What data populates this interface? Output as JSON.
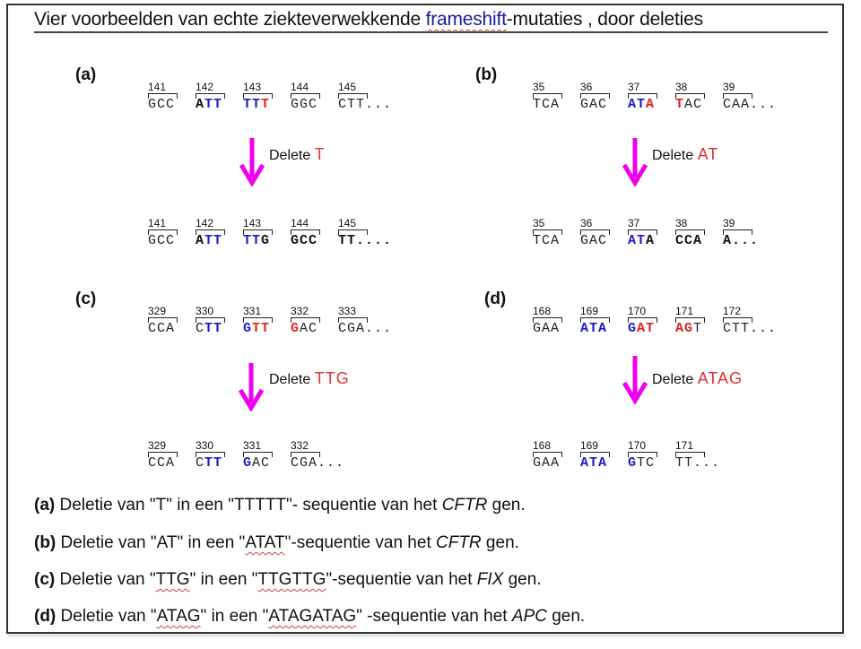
{
  "title": {
    "before": "Vier voorbeelden  van echte  ziekteverwekkende ",
    "highlight": "frameshift",
    "after": "-mutaties ,  door deleties"
  },
  "colors": {
    "arrow": "#ee00ee",
    "inserted_blue": "#1a1ac8",
    "deleted_red": "#e02020"
  },
  "panels": {
    "a": {
      "label": "(a)",
      "delete_word": "Delete",
      "deleted": "T",
      "before": [
        {
          "num": "141",
          "parts": [
            {
              "t": "GCC",
              "c": "n"
            }
          ]
        },
        {
          "num": "142",
          "parts": [
            {
              "t": "A",
              "c": "b"
            },
            {
              "t": "TT",
              "c": "blue"
            }
          ]
        },
        {
          "num": "143",
          "parts": [
            {
              "t": "TT",
              "c": "blue"
            },
            {
              "t": "T",
              "c": "red"
            }
          ]
        },
        {
          "num": "144",
          "parts": [
            {
              "t": "GGC",
              "c": "n"
            }
          ]
        },
        {
          "num": "145",
          "parts": [
            {
              "t": "CTT...",
              "c": "n"
            }
          ]
        }
      ],
      "after": [
        {
          "num": "141",
          "parts": [
            {
              "t": "GCC",
              "c": "n"
            }
          ]
        },
        {
          "num": "142",
          "parts": [
            {
              "t": "A",
              "c": "b"
            },
            {
              "t": "TT",
              "c": "blue"
            }
          ]
        },
        {
          "num": "143",
          "parts": [
            {
              "t": "TT",
              "c": "blue"
            },
            {
              "t": "G",
              "c": "b"
            }
          ]
        },
        {
          "num": "144",
          "parts": [
            {
              "t": "GCC",
              "c": "b"
            }
          ]
        },
        {
          "num": "145",
          "parts": [
            {
              "t": "TT....",
              "c": "b"
            }
          ]
        }
      ]
    },
    "b": {
      "label": "(b)",
      "delete_word": "Delete",
      "deleted": "AT",
      "before": [
        {
          "num": "35",
          "parts": [
            {
              "t": "TCA",
              "c": "n"
            }
          ]
        },
        {
          "num": "36",
          "parts": [
            {
              "t": "GAC",
              "c": "n"
            }
          ]
        },
        {
          "num": "37",
          "parts": [
            {
              "t": "AT",
              "c": "blue"
            },
            {
              "t": "A",
              "c": "red"
            }
          ]
        },
        {
          "num": "38",
          "parts": [
            {
              "t": "T",
              "c": "red"
            },
            {
              "t": "AC",
              "c": "n"
            }
          ]
        },
        {
          "num": "39",
          "parts": [
            {
              "t": "CAA...",
              "c": "n"
            }
          ]
        }
      ],
      "after": [
        {
          "num": "35",
          "parts": [
            {
              "t": "TCA",
              "c": "n"
            }
          ]
        },
        {
          "num": "36",
          "parts": [
            {
              "t": "GAC",
              "c": "n"
            }
          ]
        },
        {
          "num": "37",
          "parts": [
            {
              "t": "AT",
              "c": "blue"
            },
            {
              "t": "A",
              "c": "b"
            }
          ]
        },
        {
          "num": "38",
          "parts": [
            {
              "t": "CCA",
              "c": "b"
            }
          ]
        },
        {
          "num": "39",
          "parts": [
            {
              "t": "A...",
              "c": "b"
            }
          ]
        }
      ]
    },
    "c": {
      "label": "(c)",
      "delete_word": "Delete",
      "deleted": "TTG",
      "before": [
        {
          "num": "329",
          "parts": [
            {
              "t": "CCA",
              "c": "n"
            }
          ]
        },
        {
          "num": "330",
          "parts": [
            {
              "t": "C",
              "c": "n"
            },
            {
              "t": "TT",
              "c": "blue"
            }
          ]
        },
        {
          "num": "331",
          "parts": [
            {
              "t": "G",
              "c": "blue"
            },
            {
              "t": "TT",
              "c": "red"
            }
          ]
        },
        {
          "num": "332",
          "parts": [
            {
              "t": "G",
              "c": "red"
            },
            {
              "t": "AC",
              "c": "n"
            }
          ]
        },
        {
          "num": "333",
          "parts": [
            {
              "t": "CGA...",
              "c": "n"
            }
          ]
        }
      ],
      "after": [
        {
          "num": "329",
          "parts": [
            {
              "t": "CCA",
              "c": "n"
            }
          ]
        },
        {
          "num": "330",
          "parts": [
            {
              "t": "C",
              "c": "n"
            },
            {
              "t": "TT",
              "c": "blue"
            }
          ]
        },
        {
          "num": "331",
          "parts": [
            {
              "t": "G",
              "c": "blue"
            },
            {
              "t": "AC",
              "c": "n"
            }
          ]
        },
        {
          "num": "332",
          "parts": [
            {
              "t": "CGA...",
              "c": "n"
            }
          ]
        }
      ]
    },
    "d": {
      "label": "(d)",
      "delete_word": "Delete",
      "deleted": "ATAG",
      "before": [
        {
          "num": "168",
          "parts": [
            {
              "t": "GAA",
              "c": "n"
            }
          ]
        },
        {
          "num": "169",
          "parts": [
            {
              "t": "ATA",
              "c": "blue"
            }
          ]
        },
        {
          "num": "170",
          "parts": [
            {
              "t": "G",
              "c": "blue"
            },
            {
              "t": "AT",
              "c": "red"
            }
          ]
        },
        {
          "num": "171",
          "parts": [
            {
              "t": "AG",
              "c": "red"
            },
            {
              "t": "T",
              "c": "n"
            }
          ]
        },
        {
          "num": "172",
          "parts": [
            {
              "t": "CTT...",
              "c": "n"
            }
          ]
        }
      ],
      "after": [
        {
          "num": "168",
          "parts": [
            {
              "t": "GAA",
              "c": "n"
            }
          ]
        },
        {
          "num": "169",
          "parts": [
            {
              "t": "ATA",
              "c": "blue"
            }
          ]
        },
        {
          "num": "170",
          "parts": [
            {
              "t": "G",
              "c": "blue"
            },
            {
              "t": "TC",
              "c": "n"
            }
          ]
        },
        {
          "num": "171",
          "parts": [
            {
              "t": "TT...",
              "c": "n"
            }
          ]
        }
      ]
    }
  },
  "captions": [
    {
      "label": "(a)",
      "p1": " Deletie van \"T\" in een  \"TTTTT\"- sequentie  van  het  ",
      "gene": "CFTR",
      "p2": " gen.",
      "sq": ""
    },
    {
      "label": "(b)",
      "p1": " Deletie van \"AT\"  in een \"",
      "sq": "ATAT",
      "p1b": "\"-sequentie van het  ",
      "gene": "CFTR",
      "p2": " gen."
    },
    {
      "label": "(c)",
      "p1": " Deletie van \"",
      "sq": "TTG",
      "p1b": "\" in een \"",
      "sq2": "TTGTTG",
      "p1c": "\"-sequentie  van het  ",
      "gene": "FIX",
      "p2": " gen."
    },
    {
      "label": "(d)",
      "p1": " Deletie van \"",
      "sq": "ATAG",
      "p1b": "\" in een \"",
      "sq2": "ATAGATAG",
      "p1c": "\" -sequentie van het  ",
      "gene": "APC",
      "p2": " gen."
    }
  ]
}
